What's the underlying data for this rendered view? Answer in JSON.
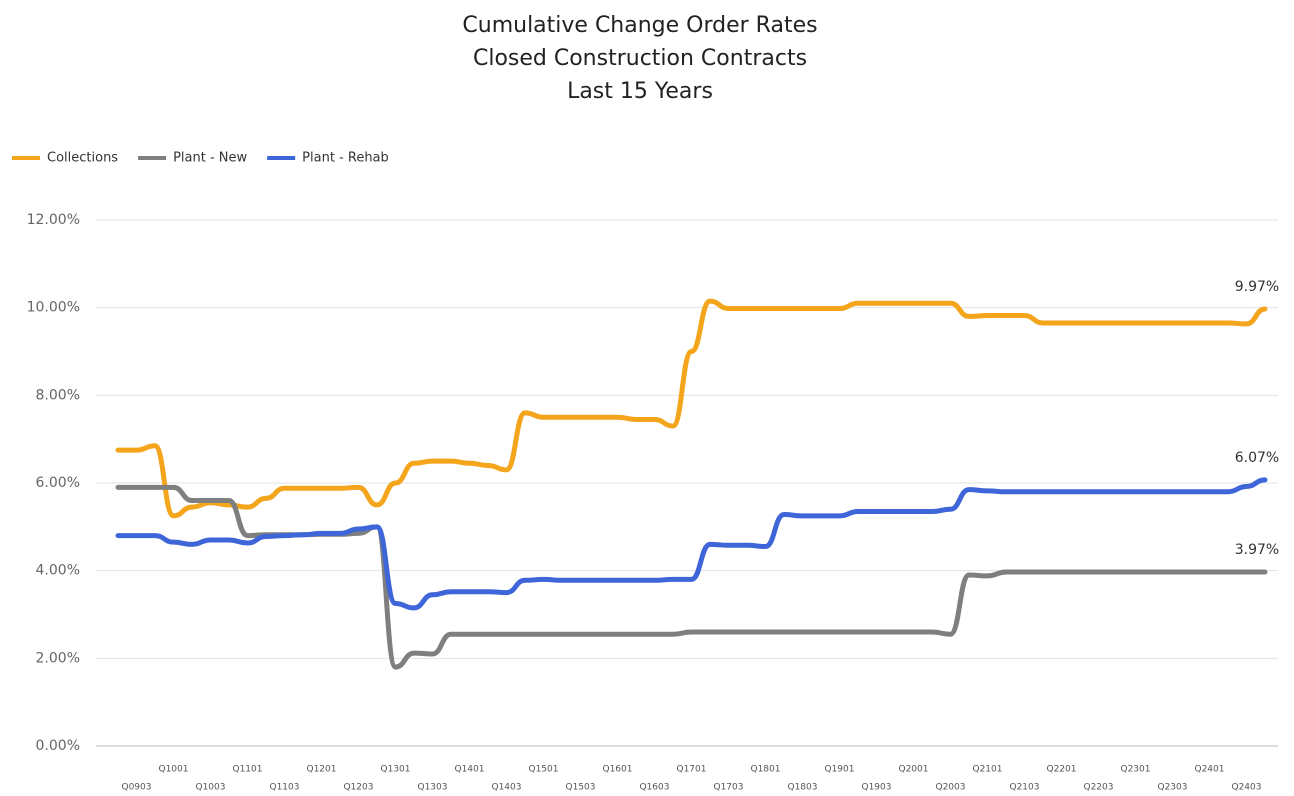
{
  "chart_data": {
    "type": "line",
    "title": [
      "Cumulative Change Order Rates",
      "Closed Construction Contracts",
      "Last 15 Years"
    ],
    "categories": [
      null,
      "Q0903",
      null,
      "Q1001",
      null,
      "Q1003",
      null,
      "Q1101",
      null,
      "Q1103",
      null,
      "Q1201",
      null,
      "Q1203",
      null,
      "Q1301",
      null,
      "Q1303",
      null,
      "Q1401",
      null,
      "Q1403",
      null,
      "Q1501",
      null,
      "Q1503",
      null,
      "Q1601",
      null,
      "Q1603",
      null,
      "Q1701",
      null,
      "Q1703",
      null,
      "Q1801",
      null,
      "Q1803",
      null,
      "Q1901",
      null,
      "Q1903",
      null,
      "Q2001",
      null,
      "Q2003",
      null,
      "Q2101",
      null,
      "Q2103",
      null,
      "Q2201",
      null,
      "Q2203",
      null,
      "Q2301",
      null,
      "Q2303",
      null,
      "Q2401",
      null,
      "Q2403",
      null
    ],
    "series": [
      {
        "name": "Collections",
        "color": "#f4a51c",
        "values": [
          6.75,
          6.75,
          6.85,
          5.25,
          5.45,
          5.55,
          5.5,
          5.45,
          5.65,
          5.88,
          5.88,
          5.88,
          5.88,
          5.9,
          5.5,
          6.0,
          6.45,
          6.5,
          6.5,
          6.45,
          6.4,
          6.3,
          7.6,
          7.5,
          7.5,
          7.5,
          7.5,
          7.5,
          7.45,
          7.45,
          7.3,
          9.0,
          10.15,
          9.98,
          9.98,
          9.98,
          9.98,
          9.98,
          9.98,
          9.98,
          10.1,
          10.1,
          10.1,
          10.1,
          10.1,
          10.1,
          9.8,
          9.82,
          9.82,
          9.82,
          9.65,
          9.65,
          9.65,
          9.65,
          9.65,
          9.65,
          9.65,
          9.65,
          9.65,
          9.65,
          9.65,
          9.63,
          9.97
        ],
        "value_labels": [
          null,
          null,
          null,
          null,
          null,
          null,
          null,
          null,
          null,
          null,
          null,
          null,
          null,
          null,
          null,
          null,
          null,
          null,
          null,
          null,
          null,
          null,
          null,
          null,
          null,
          null,
          null,
          null,
          null,
          null,
          null,
          null,
          null,
          null,
          null,
          null,
          null,
          null,
          null,
          null,
          null,
          null,
          null,
          null,
          null,
          null,
          null,
          null,
          null,
          null,
          null,
          null,
          null,
          null,
          null,
          null,
          null,
          null,
          null,
          null,
          null,
          null,
          "9.97%"
        ]
      },
      {
        "name": "Plant - New",
        "color": "#7f7f7f",
        "values": [
          5.9,
          5.9,
          5.9,
          5.9,
          5.6,
          5.6,
          5.6,
          4.8,
          4.82,
          4.82,
          4.82,
          4.83,
          4.83,
          4.85,
          5.0,
          1.8,
          2.12,
          2.1,
          2.55,
          2.55,
          2.55,
          2.55,
          2.55,
          2.55,
          2.55,
          2.55,
          2.55,
          2.55,
          2.55,
          2.55,
          2.55,
          2.6,
          2.6,
          2.6,
          2.6,
          2.6,
          2.6,
          2.6,
          2.6,
          2.6,
          2.6,
          2.6,
          2.6,
          2.6,
          2.6,
          2.55,
          3.9,
          3.88,
          3.97,
          3.97,
          3.97,
          3.97,
          3.97,
          3.97,
          3.97,
          3.97,
          3.97,
          3.97,
          3.97,
          3.97,
          3.97,
          3.97,
          3.97
        ],
        "value_labels": [
          null,
          null,
          null,
          null,
          null,
          null,
          null,
          null,
          null,
          null,
          null,
          null,
          null,
          null,
          null,
          null,
          null,
          null,
          null,
          null,
          null,
          null,
          null,
          null,
          null,
          null,
          null,
          null,
          null,
          null,
          null,
          null,
          null,
          null,
          null,
          null,
          null,
          null,
          null,
          null,
          null,
          null,
          null,
          null,
          null,
          null,
          null,
          null,
          null,
          null,
          null,
          null,
          null,
          null,
          null,
          null,
          null,
          null,
          null,
          null,
          null,
          null,
          "3.97%"
        ]
      },
      {
        "name": "Plant - Rehab",
        "color": "#3f66d9",
        "values": [
          4.8,
          4.8,
          4.8,
          4.65,
          4.6,
          4.7,
          4.7,
          4.63,
          4.78,
          4.8,
          4.82,
          4.85,
          4.85,
          4.95,
          5.0,
          3.25,
          3.15,
          3.45,
          3.52,
          3.52,
          3.52,
          3.5,
          3.78,
          3.8,
          3.78,
          3.78,
          3.78,
          3.78,
          3.78,
          3.78,
          3.8,
          3.8,
          4.6,
          4.58,
          4.58,
          4.55,
          5.28,
          5.25,
          5.25,
          5.25,
          5.35,
          5.35,
          5.35,
          5.35,
          5.35,
          5.4,
          5.85,
          5.82,
          5.8,
          5.8,
          5.8,
          5.8,
          5.8,
          5.8,
          5.8,
          5.8,
          5.8,
          5.8,
          5.8,
          5.8,
          5.8,
          5.92,
          6.07
        ],
        "value_labels": [
          null,
          null,
          null,
          null,
          null,
          null,
          null,
          null,
          null,
          null,
          null,
          null,
          null,
          null,
          null,
          null,
          null,
          null,
          null,
          null,
          null,
          null,
          null,
          null,
          null,
          null,
          null,
          null,
          null,
          null,
          null,
          null,
          null,
          null,
          null,
          null,
          null,
          null,
          null,
          null,
          null,
          null,
          null,
          null,
          null,
          null,
          null,
          null,
          null,
          null,
          null,
          null,
          null,
          null,
          null,
          null,
          null,
          null,
          null,
          null,
          null,
          null,
          "6.07%"
        ]
      }
    ],
    "ylim": [
      0,
      12
    ],
    "yticks": [
      {
        "value": 0,
        "label": "0.00%"
      },
      {
        "value": 2,
        "label": "2.00%"
      },
      {
        "value": 4,
        "label": "4.00%"
      },
      {
        "value": 6,
        "label": "6.00%"
      },
      {
        "value": 8,
        "label": "8.00%"
      },
      {
        "value": 10,
        "label": "10.00%"
      },
      {
        "value": 12,
        "label": "12.00%"
      }
    ],
    "grid": true,
    "legend": "top-left"
  }
}
